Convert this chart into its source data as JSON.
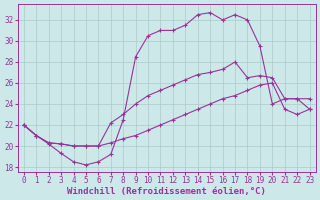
{
  "background_color": "#cce8e8",
  "grid_color": "#aacccc",
  "line_color": "#993399",
  "marker": "+",
  "xlabel": "Windchill (Refroidissement éolien,°C)",
  "xlabel_fontsize": 6.5,
  "tick_fontsize": 5.5,
  "xlim": [
    -0.5,
    23.5
  ],
  "ylim": [
    17.5,
    33.5
  ],
  "yticks": [
    18,
    20,
    22,
    24,
    26,
    28,
    30,
    32
  ],
  "xticks": [
    0,
    1,
    2,
    3,
    4,
    5,
    6,
    7,
    8,
    9,
    10,
    11,
    12,
    13,
    14,
    15,
    16,
    17,
    18,
    19,
    20,
    21,
    22,
    23
  ],
  "line1_x": [
    0,
    1,
    2,
    3,
    4,
    5,
    6,
    7,
    8,
    9,
    10,
    11,
    12,
    13,
    14,
    15,
    16,
    17,
    18,
    19,
    20,
    21,
    22,
    23
  ],
  "line1_y": [
    22.0,
    21.0,
    20.2,
    19.3,
    18.5,
    18.2,
    18.5,
    19.2,
    22.5,
    28.5,
    30.5,
    31.0,
    31.0,
    31.5,
    32.5,
    32.7,
    32.0,
    32.5,
    32.0,
    29.5,
    24.0,
    24.5,
    24.5,
    23.5
  ],
  "line2_x": [
    0,
    1,
    2,
    3,
    4,
    5,
    6,
    7,
    8,
    9,
    10,
    11,
    12,
    13,
    14,
    15,
    16,
    17,
    18,
    19,
    20,
    21,
    22,
    23
  ],
  "line2_y": [
    22.0,
    21.0,
    20.3,
    20.2,
    20.0,
    20.0,
    20.0,
    22.2,
    23.0,
    24.0,
    24.8,
    25.3,
    25.8,
    26.3,
    26.8,
    27.0,
    27.3,
    28.0,
    26.5,
    26.7,
    26.5,
    24.5,
    24.5,
    24.5
  ],
  "line3_x": [
    0,
    1,
    2,
    3,
    4,
    5,
    6,
    7,
    8,
    9,
    10,
    11,
    12,
    13,
    14,
    15,
    16,
    17,
    18,
    19,
    20,
    21,
    22,
    23
  ],
  "line3_y": [
    22.0,
    21.0,
    20.3,
    20.2,
    20.0,
    20.0,
    20.0,
    20.3,
    20.7,
    21.0,
    21.5,
    22.0,
    22.5,
    23.0,
    23.5,
    24.0,
    24.5,
    24.8,
    25.3,
    25.8,
    26.0,
    23.5,
    23.0,
    23.5
  ]
}
